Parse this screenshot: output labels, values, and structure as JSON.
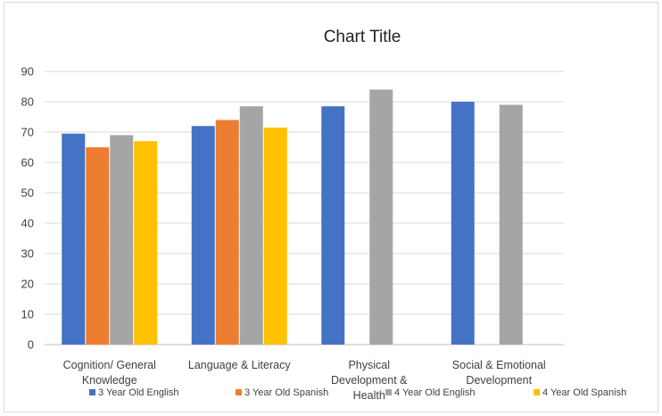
{
  "chart_data": {
    "type": "bar",
    "title": "Chart Title",
    "categories": [
      [
        "Cognition/ General",
        "Knowledge"
      ],
      [
        "Language & Literacy"
      ],
      [
        "Physical",
        "Development &",
        "Health"
      ],
      [
        "Social & Emotional",
        "Development"
      ]
    ],
    "series": [
      {
        "name": "3 Year Old English",
        "color": "#4472c4",
        "values": [
          69.5,
          72,
          78.5,
          80
        ]
      },
      {
        "name": "3 Year Old Spanish",
        "color": "#ed7d31",
        "values": [
          65,
          74,
          null,
          null
        ]
      },
      {
        "name": "4 Year Old English",
        "color": "#a5a5a5",
        "values": [
          69,
          78.5,
          84,
          79
        ]
      },
      {
        "name": "4 Year Old Spanish",
        "color": "#ffc000",
        "values": [
          67,
          71.5,
          null,
          null
        ]
      }
    ],
    "ylim": [
      0,
      90
    ],
    "yticks": [
      0,
      10,
      20,
      30,
      40,
      50,
      60,
      70,
      80,
      90
    ],
    "grid": true,
    "legend": "bottom"
  }
}
